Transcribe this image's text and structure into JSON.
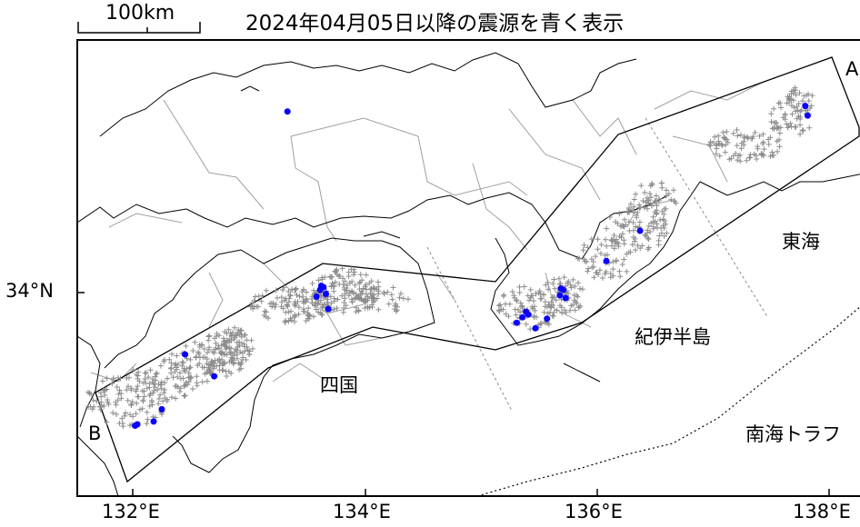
{
  "title": "2024年04月05日以降の震源を青く表示",
  "scale_label": "100km",
  "lon_labels": [
    "132°E",
    "134°E",
    "136°E",
    "138°E"
  ],
  "lat_labels": [
    "34°N"
  ],
  "region_labels": {
    "shikoku": "四国",
    "kii": "紀伊半島",
    "tokai": "東海",
    "trough": "南海トラフ"
  },
  "section_labels": {
    "a": "A",
    "b": "B"
  },
  "colors": {
    "old_quakes": "#8c8c8c",
    "recent_quakes": "#0a00ff",
    "boundaries": "#a0a0a0",
    "coast": "#000000"
  },
  "map_data": {
    "extent_lon": [
      131.5,
      138.3
    ],
    "extent_lat": [
      32.55,
      35.75
    ],
    "recent_quakes": [
      [
        133.33,
        35.32
      ],
      [
        132.45,
        33.55
      ],
      [
        132.7,
        33.39
      ],
      [
        132.25,
        33.15
      ],
      [
        132.18,
        33.06
      ],
      [
        132.02,
        33.03
      ],
      [
        132.04,
        33.04
      ],
      [
        133.58,
        33.97
      ],
      [
        133.61,
        34.02
      ],
      [
        133.64,
        34.04
      ],
      [
        133.66,
        33.99
      ],
      [
        133.68,
        33.88
      ],
      [
        133.62,
        34.05
      ],
      [
        135.3,
        33.78
      ],
      [
        135.35,
        33.82
      ],
      [
        135.38,
        33.86
      ],
      [
        135.4,
        33.84
      ],
      [
        135.46,
        33.74
      ],
      [
        135.56,
        33.81
      ],
      [
        135.67,
        33.98
      ],
      [
        135.7,
        34.02
      ],
      [
        135.72,
        33.96
      ],
      [
        135.68,
        34.03
      ],
      [
        136.07,
        34.23
      ],
      [
        136.36,
        34.45
      ],
      [
        137.78,
        35.36
      ],
      [
        137.8,
        35.29
      ]
    ]
  }
}
